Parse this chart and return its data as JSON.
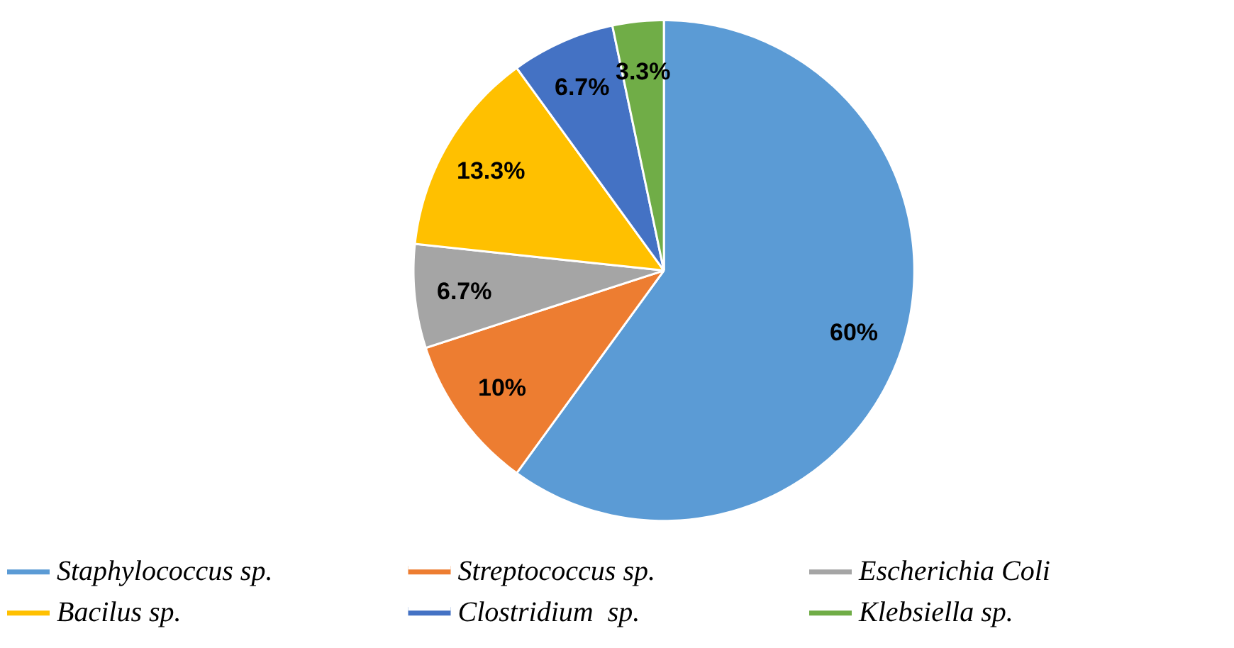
{
  "chart_data": {
    "type": "pie",
    "categories": [
      "Staphylococcus sp.",
      "Streptococcus sp.",
      "Escherichia Coli",
      "Bacilus sp.",
      "Clostridium  sp.",
      "Klebsiella sp."
    ],
    "values": [
      60,
      10,
      6.7,
      13.3,
      6.7,
      3.3
    ],
    "value_labels": [
      "60%",
      "10%",
      "6.7%",
      "13.3%",
      "6.7%",
      "3.3%"
    ],
    "colors": [
      "#5b9bd5",
      "#ed7d31",
      "#a5a5a5",
      "#ffc000",
      "#4472c4",
      "#70ad47"
    ],
    "legend": "bottom"
  }
}
